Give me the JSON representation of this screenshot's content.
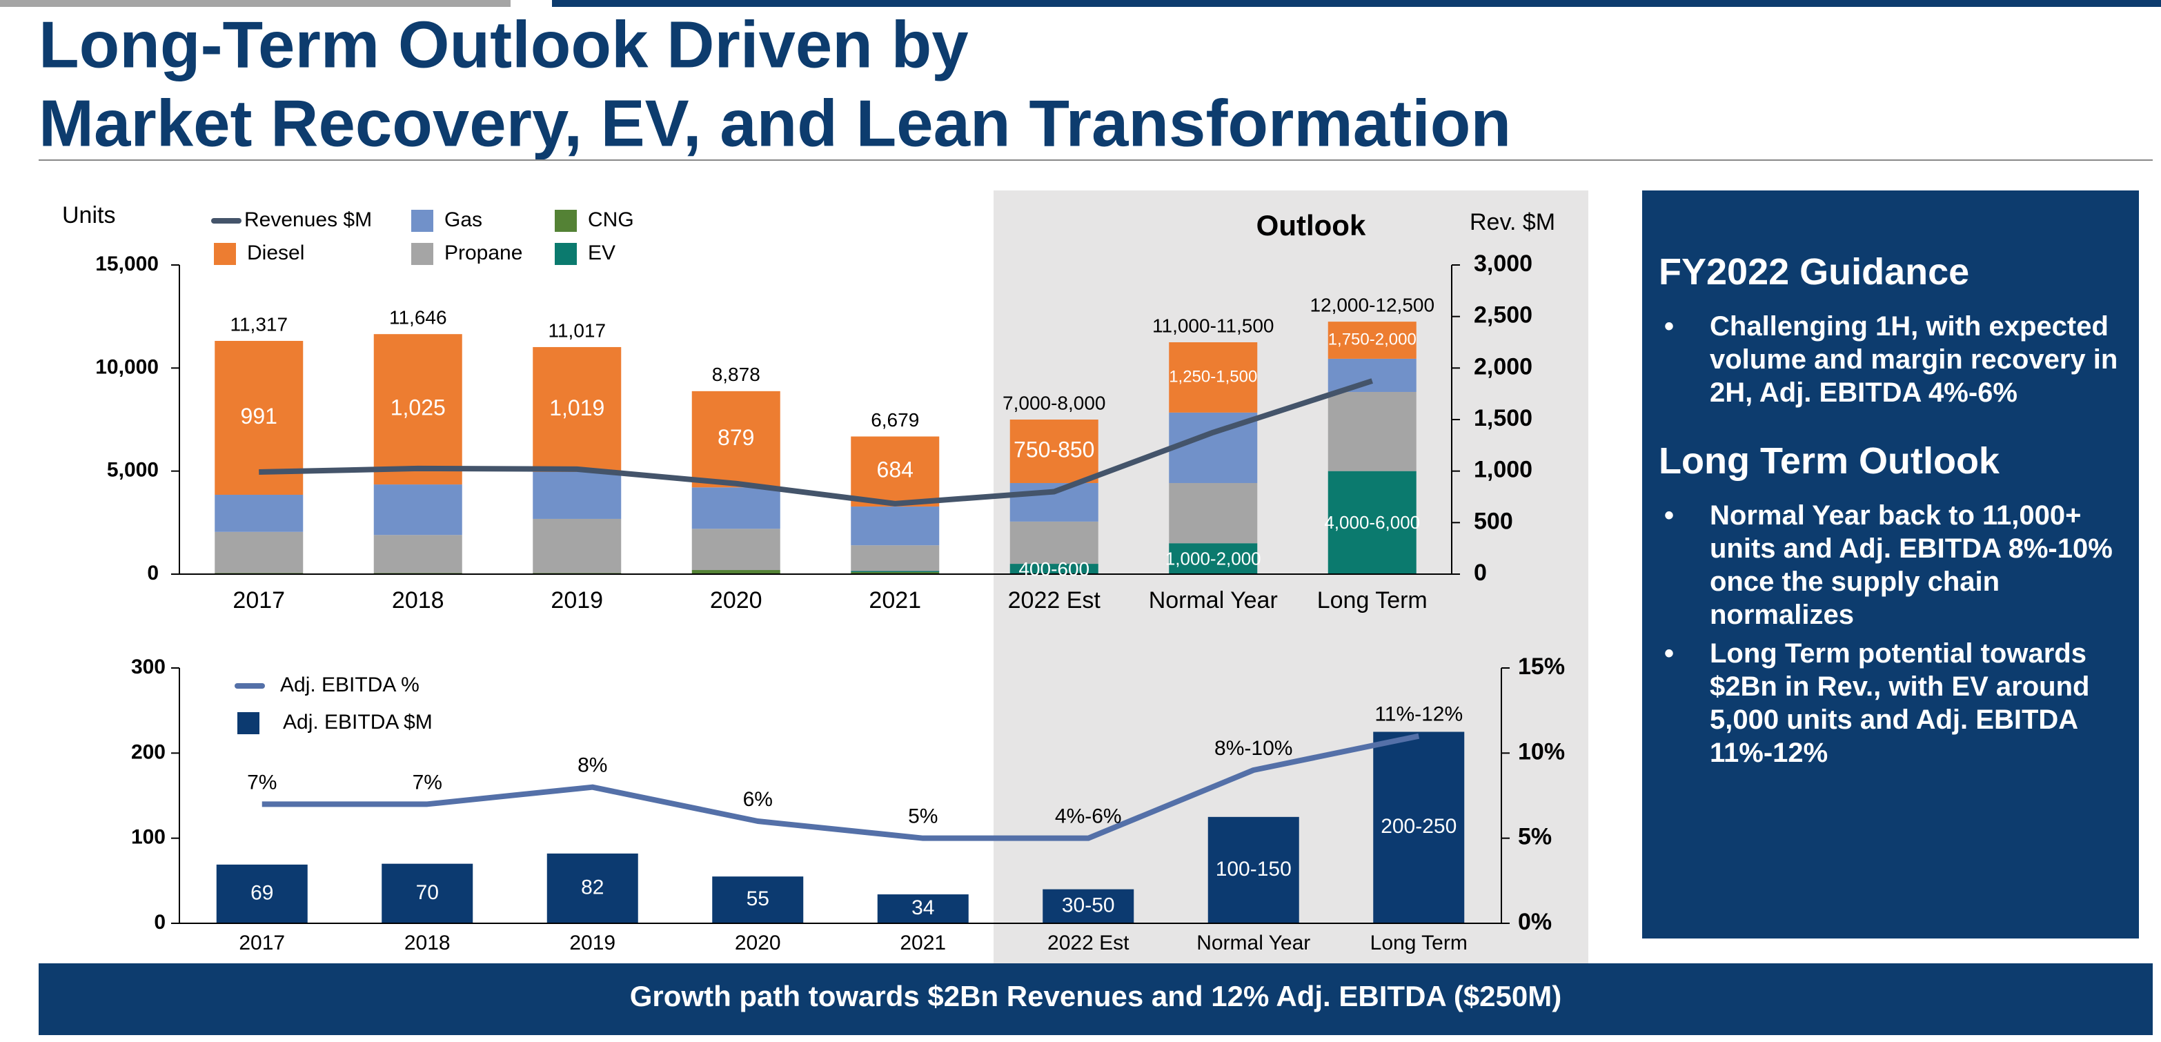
{
  "title_lines": [
    "Long-Term Outlook Driven by",
    "Market Recovery, EV, and Lean Transformation"
  ],
  "chart_data": [
    {
      "type": "bar",
      "stacked": true,
      "ylabel": "Units",
      "y2label": "Rev. $M",
      "annotation": "Outlook",
      "categories": [
        "2017",
        "2018",
        "2019",
        "2020",
        "2021",
        "2022 Est",
        "Normal Year",
        "Long Term"
      ],
      "series": [
        {
          "name": "Revenues $M",
          "type": "line",
          "axis": "y2",
          "color": "#44546a",
          "values": [
            991,
            1025,
            1019,
            879,
            684,
            800,
            1375,
            1875
          ],
          "value_labels": [
            "991",
            "1,025",
            "1,019",
            "879",
            "684",
            "750-850",
            "1,250-1,500",
            "1,750-2,000"
          ]
        },
        {
          "name": "Gas",
          "color": "#7191c9",
          "values": [
            1800,
            2450,
            2280,
            2010,
            1880,
            1870,
            3420,
            1610
          ]
        },
        {
          "name": "CNG",
          "color": "#548235",
          "values": [
            50,
            50,
            50,
            200,
            100,
            0,
            0,
            0
          ]
        },
        {
          "name": "Diesel",
          "color": "#ed7d31",
          "values": [
            7467,
            7296,
            6057,
            4668,
            3399,
            3080,
            3410,
            1800
          ]
        },
        {
          "name": "Propane",
          "color": "#a5a5a5",
          "values": [
            2000,
            1850,
            2630,
            2000,
            1250,
            2050,
            2920,
            3840
          ]
        },
        {
          "name": "EV",
          "color": "#0b7a6e",
          "values": [
            0,
            0,
            0,
            0,
            50,
            500,
            1500,
            5000
          ],
          "value_labels": [
            null,
            null,
            null,
            null,
            null,
            "400-600",
            "1,000-2,000",
            "4,000-6,000"
          ]
        }
      ],
      "total_labels": [
        "11,317",
        "11,646",
        "11,017",
        "8,878",
        "6,679",
        "7,000-8,000",
        "11,000-11,500",
        "12,000-12,500"
      ],
      "ylim": [
        0,
        15000
      ],
      "yticks": [
        0,
        {
          "value": 5000,
          "label": "5,000"
        },
        {
          "value": 10000,
          "label": "10,000"
        },
        {
          "value": 15000,
          "label": "15,000"
        }
      ],
      "y2lim": [
        0,
        3000
      ],
      "y2ticks": [
        0,
        500,
        {
          "value": 1000,
          "label": "1,000"
        },
        {
          "value": 1500,
          "label": "1,500"
        },
        {
          "value": 2000,
          "label": "2,000"
        },
        {
          "value": 2500,
          "label": "2,500"
        },
        {
          "value": 3000,
          "label": "3,000"
        }
      ]
    },
    {
      "type": "bar",
      "stacked": false,
      "categories": [
        "2017",
        "2018",
        "2019",
        "2020",
        "2021",
        "2022 Est",
        "Normal Year",
        "Long Term"
      ],
      "series": [
        {
          "name": "Adj. EBITDA %",
          "type": "line",
          "axis": "y2",
          "color": "#5470a8",
          "values": [
            7,
            7,
            8,
            6,
            5,
            5,
            9,
            11
          ],
          "value_labels": [
            "7%",
            "7%",
            "8%",
            "6%",
            "5%",
            "4%-6%",
            "8%-10%",
            "11%-12%"
          ]
        },
        {
          "name": "Adj. EBITDA $M",
          "color": "#0c3a70",
          "values": [
            69,
            70,
            82,
            55,
            34,
            40,
            125,
            225
          ],
          "value_labels": [
            "69",
            "70",
            "82",
            "55",
            "34",
            "30-50",
            "100-150",
            "200-250"
          ]
        }
      ],
      "ylim": [
        0,
        300
      ],
      "yticks": [
        0,
        100,
        200,
        300
      ],
      "y2lim": [
        0,
        15
      ],
      "y2ticks": [
        {
          "value": 0,
          "label": "0%"
        },
        {
          "value": 5,
          "label": "5%"
        },
        {
          "value": 10,
          "label": "10%"
        },
        {
          "value": 15,
          "label": "15%"
        }
      ]
    }
  ],
  "sidebar": {
    "sections": [
      {
        "heading": "FY2022 Guidance",
        "bullets": [
          "Challenging 1H, with expected volume and margin recovery in 2H, Adj. EBITDA 4%-6%"
        ]
      },
      {
        "heading": "Long Term Outlook",
        "bullets": [
          "Normal Year back to 11,000+ units and Adj. EBITDA 8%-10% once the supply chain normalizes",
          "Long Term potential towards $2Bn in Rev., with EV around 5,000 units and Adj. EBITDA 11%-12%"
        ]
      }
    ]
  },
  "footer": "Growth path towards $2Bn Revenues and 12% Adj. EBITDA ($250M)"
}
